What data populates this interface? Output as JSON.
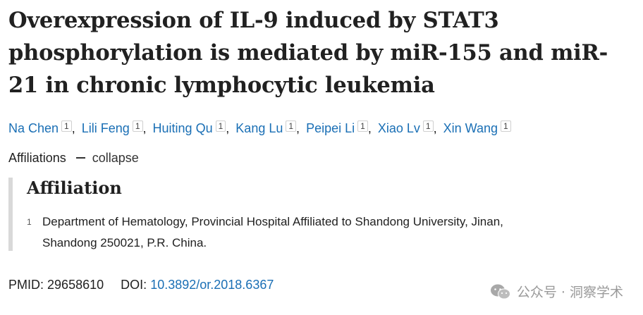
{
  "article": {
    "title": "Overexpression of IL-9 induced by STAT3 phosphorylation is mediated by miR-155 and miR-21 in chronic lymphocytic leukemia",
    "authors": [
      {
        "name": "Na Chen",
        "affil": "1"
      },
      {
        "name": "Lili Feng",
        "affil": "1"
      },
      {
        "name": "Huiting Qu",
        "affil": "1"
      },
      {
        "name": "Kang Lu",
        "affil": "1"
      },
      {
        "name": "Peipei Li",
        "affil": "1"
      },
      {
        "name": "Xiao Lv",
        "affil": "1"
      },
      {
        "name": "Xin Wang",
        "affil": "1"
      }
    ],
    "author_separator": ","
  },
  "affiliations_toggle": {
    "label": "Affiliations",
    "action": "collapse"
  },
  "affiliation_panel": {
    "heading": "Affiliation",
    "items": [
      {
        "number": "1",
        "line1": "Department of Hematology, Provincial Hospital Affiliated to Shandong University, Jinan,",
        "line2": "Shandong 250021, P.R. China."
      }
    ]
  },
  "identifiers": {
    "pmid_label": "PMID:",
    "pmid": "29658610",
    "doi_label": "DOI:",
    "doi": "10.3892/or.2018.6367"
  },
  "watermark": {
    "text": "公众号 · 洞察学术",
    "icon": "wechat-icon"
  },
  "colors": {
    "link": "#1a6fb5",
    "text": "#212121",
    "affiliation_bar": "#d9d9d9",
    "watermark": "#9a9a9a"
  }
}
